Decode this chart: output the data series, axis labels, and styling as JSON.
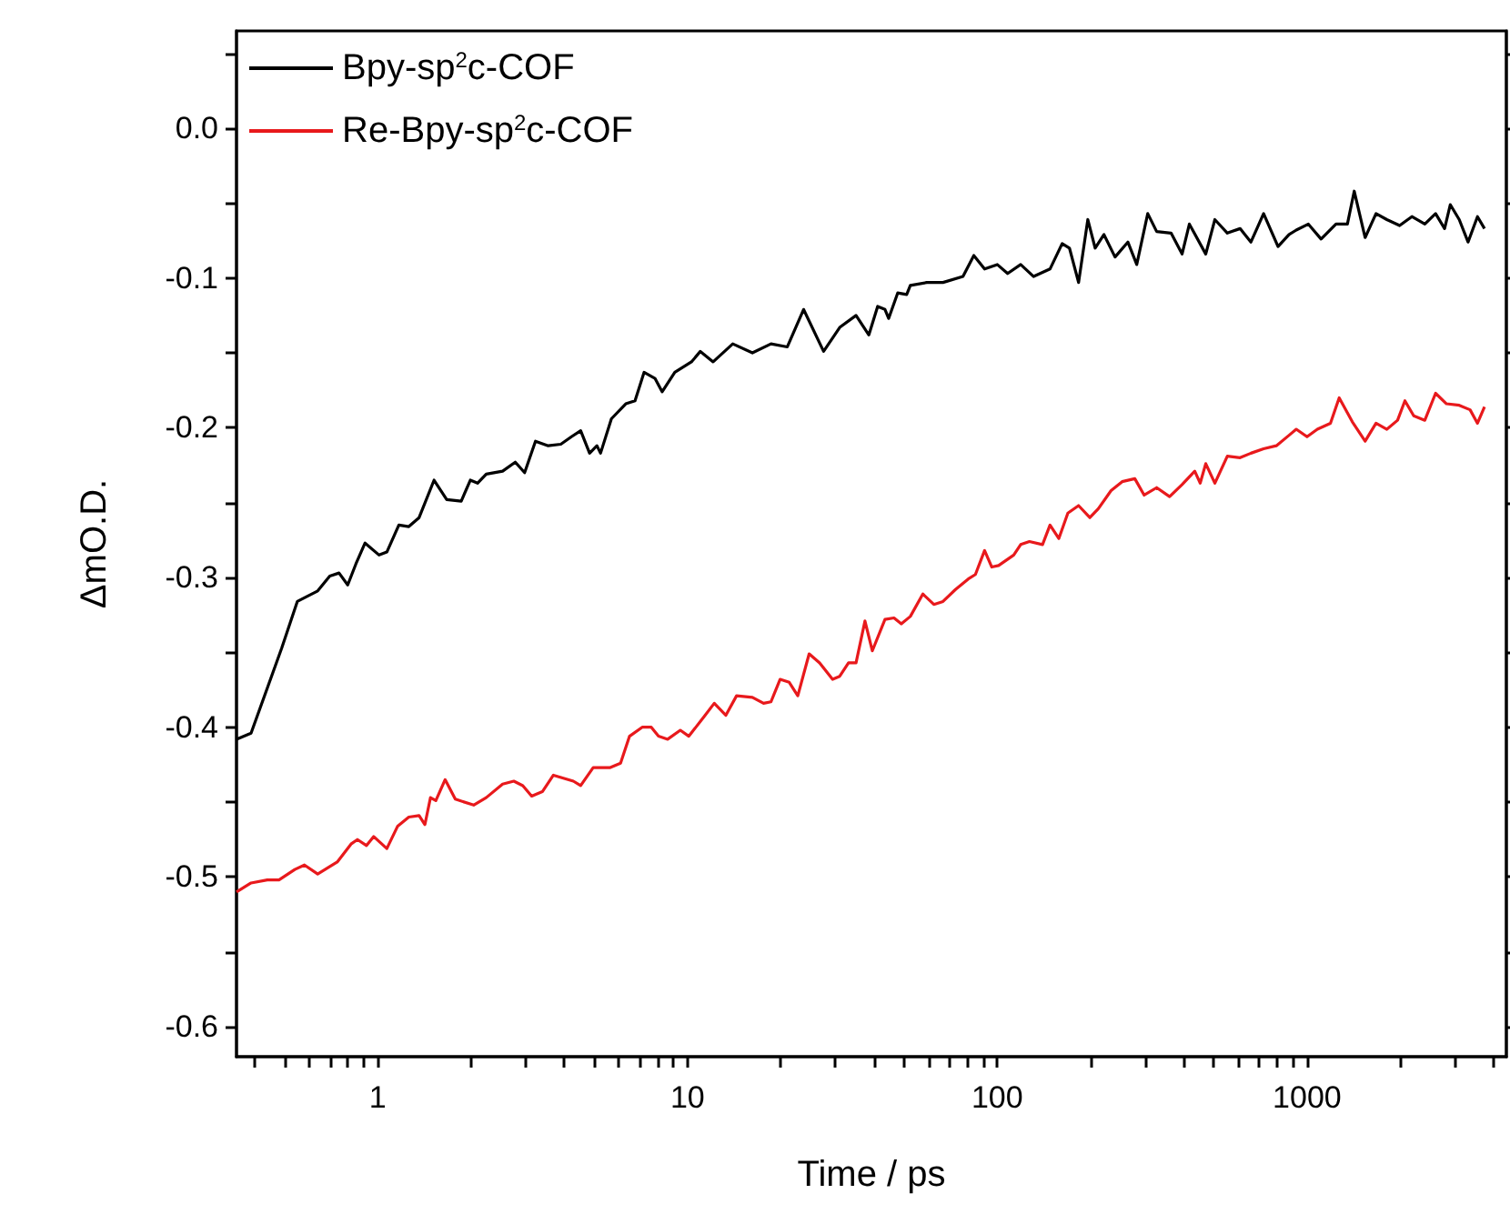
{
  "chart_data": {
    "type": "line",
    "xlabel": "Time / ps",
    "ylabel": "ΔmO.D.",
    "log": "x",
    "grid": false,
    "legend": "top left",
    "marker": "none",
    "line_style": "solid",
    "xlim": [
      0.35,
      4400
    ],
    "xticks": [
      {
        "value": 0.4,
        "label": null
      },
      {
        "value": 0.5,
        "label": null
      },
      {
        "value": 0.6,
        "label": null
      },
      {
        "value": 0.7,
        "label": null
      },
      {
        "value": 0.8,
        "label": null
      },
      {
        "value": 0.9,
        "label": null
      },
      1,
      {
        "value": 2,
        "label": null
      },
      {
        "value": 3,
        "label": null
      },
      {
        "value": 4,
        "label": null
      },
      {
        "value": 5,
        "label": null
      },
      {
        "value": 6,
        "label": null
      },
      {
        "value": 7,
        "label": null
      },
      {
        "value": 8,
        "label": null
      },
      {
        "value": 9,
        "label": null
      },
      10,
      {
        "value": 20,
        "label": null
      },
      {
        "value": 30,
        "label": null
      },
      {
        "value": 40,
        "label": null
      },
      {
        "value": 50,
        "label": null
      },
      {
        "value": 60,
        "label": null
      },
      {
        "value": 70,
        "label": null
      },
      {
        "value": 80,
        "label": null
      },
      {
        "value": 90,
        "label": null
      },
      100,
      {
        "value": 200,
        "label": null
      },
      {
        "value": 300,
        "label": null
      },
      {
        "value": 400,
        "label": null
      },
      {
        "value": 500,
        "label": null
      },
      {
        "value": 600,
        "label": null
      },
      {
        "value": 700,
        "label": null
      },
      {
        "value": 800,
        "label": null
      },
      {
        "value": 900,
        "label": null
      },
      1000,
      {
        "value": 2000,
        "label": null
      },
      {
        "value": 3000,
        "label": null
      },
      {
        "value": 4000,
        "label": null
      }
    ],
    "ylim": [
      -0.62,
      0.065
    ],
    "yticks": [
      -0.6,
      {
        "value": -0.55,
        "label": null
      },
      -0.5,
      {
        "value": -0.45,
        "label": null
      },
      -0.4,
      {
        "value": -0.35,
        "label": null
      },
      -0.3,
      {
        "value": -0.25,
        "label": null
      },
      -0.2,
      {
        "value": -0.15,
        "label": null
      },
      -0.1,
      {
        "value": -0.05,
        "label": null
      },
      {
        "value": 0,
        "label": "0.0"
      },
      {
        "value": 0.05,
        "label": null
      }
    ],
    "series": [
      {
        "name": "Bpy-sp$^{2}$c-COF",
        "color": "#000000",
        "x": [
          0.35,
          0.39,
          0.49,
          0.55,
          0.64,
          0.7,
          0.75,
          0.8,
          0.85,
          0.91,
          1.01,
          1.07,
          1.17,
          1.26,
          1.36,
          1.52,
          1.67,
          1.86,
          1.99,
          2.1,
          2.24,
          2.53,
          2.78,
          2.98,
          3.23,
          3.55,
          3.9,
          4.22,
          4.52,
          4.83,
          5.1,
          5.24,
          5.68,
          6.32,
          6.77,
          7.24,
          7.85,
          8.28,
          9.1,
          10.3,
          11.0,
          12.1,
          14.0,
          16.2,
          18.6,
          21.0,
          23.7,
          27.5,
          31.0,
          35.0,
          38.5,
          41.1,
          43.4,
          44.6,
          47.7,
          51.0,
          52.4,
          59.2,
          66.8,
          77.5,
          84.0,
          91.0,
          100,
          108,
          119,
          131,
          148,
          162,
          171,
          183,
          196,
          207,
          221,
          240,
          264,
          282,
          306,
          327,
          364,
          395,
          417,
          471,
          504,
          553,
          608,
          659,
          724,
          806,
          875,
          923,
          1010,
          1110,
          1240,
          1350,
          1420,
          1540,
          1670,
          1810,
          1990,
          2180,
          2400,
          2600,
          2780,
          2900,
          3100,
          3310,
          3550,
          3740
        ],
        "values": [
          -0.408,
          -0.404,
          -0.347,
          -0.316,
          -0.309,
          -0.299,
          -0.297,
          -0.305,
          -0.291,
          -0.277,
          -0.285,
          -0.283,
          -0.265,
          -0.266,
          -0.26,
          -0.235,
          -0.248,
          -0.249,
          -0.235,
          -0.237,
          -0.231,
          -0.229,
          -0.223,
          -0.23,
          -0.209,
          -0.212,
          -0.211,
          -0.206,
          -0.202,
          -0.217,
          -0.212,
          -0.217,
          -0.194,
          -0.184,
          -0.182,
          -0.163,
          -0.167,
          -0.176,
          -0.163,
          -0.156,
          -0.149,
          -0.156,
          -0.144,
          -0.15,
          -0.144,
          -0.146,
          -0.121,
          -0.149,
          -0.133,
          -0.125,
          -0.138,
          -0.119,
          -0.121,
          -0.127,
          -0.11,
          -0.111,
          -0.105,
          -0.103,
          -0.103,
          -0.099,
          -0.085,
          -0.094,
          -0.091,
          -0.097,
          -0.091,
          -0.099,
          -0.094,
          -0.077,
          -0.08,
          -0.103,
          -0.061,
          -0.08,
          -0.071,
          -0.086,
          -0.076,
          -0.091,
          -0.057,
          -0.069,
          -0.07,
          -0.084,
          -0.064,
          -0.084,
          -0.061,
          -0.07,
          -0.067,
          -0.076,
          -0.057,
          -0.079,
          -0.071,
          -0.068,
          -0.064,
          -0.074,
          -0.064,
          -0.064,
          -0.042,
          -0.073,
          -0.057,
          -0.061,
          -0.065,
          -0.059,
          -0.064,
          -0.057,
          -0.067,
          -0.051,
          -0.061,
          -0.076,
          -0.059,
          -0.067
        ]
      },
      {
        "name": "Re-Bpy-sp$^{2}$c-COF",
        "color": "#e8191c",
        "x": [
          0.35,
          0.39,
          0.44,
          0.48,
          0.54,
          0.58,
          0.64,
          0.74,
          0.82,
          0.86,
          0.92,
          0.97,
          1.07,
          1.16,
          1.26,
          1.36,
          1.42,
          1.48,
          1.54,
          1.65,
          1.78,
          2.04,
          2.24,
          2.53,
          2.75,
          2.94,
          3.14,
          3.4,
          3.69,
          4.28,
          4.52,
          4.96,
          5.61,
          6.08,
          6.5,
          7.14,
          7.64,
          8.06,
          8.63,
          9.48,
          10.1,
          11.3,
          12.2,
          13.3,
          14.4,
          16.2,
          17.6,
          18.6,
          19.9,
          21.3,
          22.7,
          24.7,
          26.7,
          29.4,
          31.0,
          33.1,
          35.0,
          37.4,
          39.5,
          43.4,
          46.4,
          49.0,
          52.4,
          57.5,
          62.4,
          66.8,
          73.3,
          80.6,
          85.0,
          91.0,
          96.0,
          101,
          113,
          119,
          127,
          140,
          148,
          158,
          169,
          183,
          199,
          212,
          233,
          253,
          278,
          298,
          327,
          360,
          395,
          434,
          452,
          471,
          504,
          553,
          608,
          659,
          724,
          796,
          875,
          923,
          1000,
          1080,
          1190,
          1270,
          1400,
          1540,
          1670,
          1810,
          1960,
          2070,
          2210,
          2400,
          2600,
          2820,
          3100,
          3360,
          3550,
          3740
        ],
        "values": [
          -0.51,
          -0.504,
          -0.502,
          -0.502,
          -0.495,
          -0.492,
          -0.498,
          -0.49,
          -0.478,
          -0.475,
          -0.479,
          -0.473,
          -0.481,
          -0.466,
          -0.46,
          -0.459,
          -0.465,
          -0.447,
          -0.449,
          -0.435,
          -0.448,
          -0.452,
          -0.447,
          -0.438,
          -0.436,
          -0.439,
          -0.446,
          -0.443,
          -0.432,
          -0.436,
          -0.439,
          -0.427,
          -0.427,
          -0.424,
          -0.406,
          -0.4,
          -0.4,
          -0.406,
          -0.408,
          -0.402,
          -0.406,
          -0.393,
          -0.384,
          -0.392,
          -0.379,
          -0.38,
          -0.384,
          -0.383,
          -0.368,
          -0.37,
          -0.379,
          -0.351,
          -0.357,
          -0.368,
          -0.366,
          -0.357,
          -0.357,
          -0.329,
          -0.349,
          -0.328,
          -0.327,
          -0.331,
          -0.326,
          -0.311,
          -0.318,
          -0.316,
          -0.308,
          -0.301,
          -0.298,
          -0.282,
          -0.293,
          -0.292,
          -0.285,
          -0.278,
          -0.276,
          -0.278,
          -0.265,
          -0.274,
          -0.257,
          -0.252,
          -0.26,
          -0.254,
          -0.242,
          -0.236,
          -0.234,
          -0.245,
          -0.24,
          -0.246,
          -0.238,
          -0.229,
          -0.237,
          -0.224,
          -0.237,
          -0.219,
          -0.22,
          -0.217,
          -0.214,
          -0.212,
          -0.205,
          -0.201,
          -0.206,
          -0.201,
          -0.197,
          -0.18,
          -0.196,
          -0.209,
          -0.197,
          -0.201,
          -0.195,
          -0.182,
          -0.192,
          -0.195,
          -0.177,
          -0.184,
          -0.185,
          -0.188,
          -0.197,
          -0.186
        ]
      }
    ]
  }
}
